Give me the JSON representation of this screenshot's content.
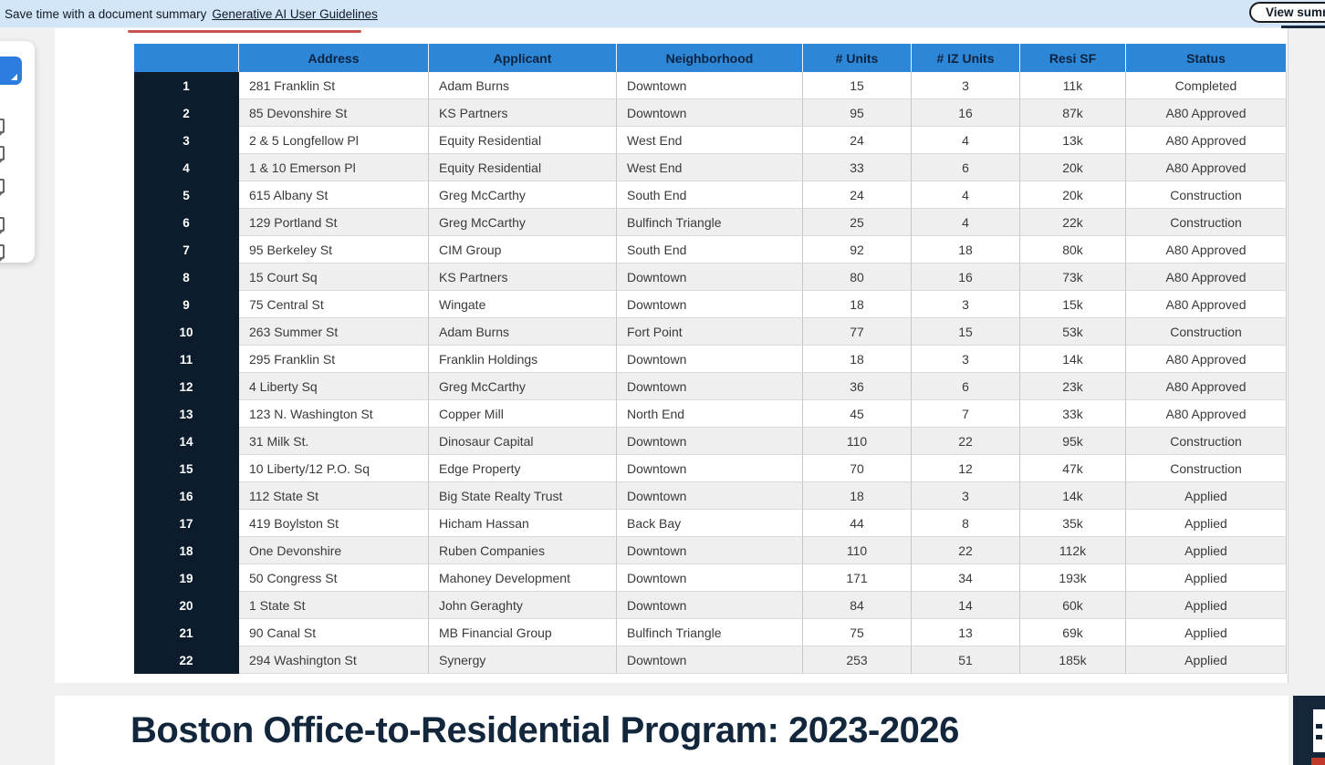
{
  "banner": {
    "message": "Save time with a document summary",
    "link_label": "Generative AI User Guidelines",
    "view_summary_button": "View summary"
  },
  "sidebar": {
    "active_tool": "ai-assistant",
    "tools": [
      "ai-assistant-icon",
      "bookmarks-icon",
      "attachments-icon",
      "layers-icon",
      "comments-icon",
      "signature-icon"
    ]
  },
  "table": {
    "headers": [
      "",
      "Address",
      "Applicant",
      "Neighborhood",
      "# Units",
      "# IZ Units",
      "Resi SF",
      "Status"
    ],
    "rows": [
      {
        "num": "1",
        "address": "281 Franklin St",
        "applicant": "Adam Burns",
        "neighborhood": "Downtown",
        "units": "15",
        "iz_units": "3",
        "resi_sf": "11k",
        "status": "Completed"
      },
      {
        "num": "2",
        "address": "85 Devonshire St",
        "applicant": "KS Partners",
        "neighborhood": "Downtown",
        "units": "95",
        "iz_units": "16",
        "resi_sf": "87k",
        "status": "A80 Approved"
      },
      {
        "num": "3",
        "address": "2 & 5 Longfellow Pl",
        "applicant": "Equity Residential",
        "neighborhood": "West End",
        "units": "24",
        "iz_units": "4",
        "resi_sf": "13k",
        "status": "A80 Approved"
      },
      {
        "num": "4",
        "address": "1 & 10 Emerson Pl",
        "applicant": "Equity Residential",
        "neighborhood": "West End",
        "units": "33",
        "iz_units": "6",
        "resi_sf": "20k",
        "status": "A80 Approved"
      },
      {
        "num": "5",
        "address": "615 Albany St",
        "applicant": "Greg McCarthy",
        "neighborhood": "South End",
        "units": "24",
        "iz_units": "4",
        "resi_sf": "20k",
        "status": "Construction"
      },
      {
        "num": "6",
        "address": "129 Portland St",
        "applicant": "Greg McCarthy",
        "neighborhood": "Bulfinch Triangle",
        "units": "25",
        "iz_units": "4",
        "resi_sf": "22k",
        "status": "Construction"
      },
      {
        "num": "7",
        "address": "95 Berkeley St",
        "applicant": "CIM Group",
        "neighborhood": "South End",
        "units": "92",
        "iz_units": "18",
        "resi_sf": "80k",
        "status": "A80 Approved"
      },
      {
        "num": "8",
        "address": "15 Court Sq",
        "applicant": "KS Partners",
        "neighborhood": "Downtown",
        "units": "80",
        "iz_units": "16",
        "resi_sf": "73k",
        "status": "A80 Approved"
      },
      {
        "num": "9",
        "address": "75 Central St",
        "applicant": "Wingate",
        "neighborhood": "Downtown",
        "units": "18",
        "iz_units": "3",
        "resi_sf": "15k",
        "status": "A80 Approved"
      },
      {
        "num": "10",
        "address": "263 Summer St",
        "applicant": "Adam Burns",
        "neighborhood": "Fort Point",
        "units": "77",
        "iz_units": "15",
        "resi_sf": "53k",
        "status": "Construction"
      },
      {
        "num": "11",
        "address": "295 Franklin St",
        "applicant": "Franklin Holdings",
        "neighborhood": "Downtown",
        "units": "18",
        "iz_units": "3",
        "resi_sf": "14k",
        "status": "A80 Approved"
      },
      {
        "num": "12",
        "address": "4 Liberty Sq",
        "applicant": "Greg McCarthy",
        "neighborhood": "Downtown",
        "units": "36",
        "iz_units": "6",
        "resi_sf": "23k",
        "status": "A80 Approved"
      },
      {
        "num": "13",
        "address": "123 N. Washington St",
        "applicant": "Copper Mill",
        "neighborhood": "North End",
        "units": "45",
        "iz_units": "7",
        "resi_sf": "33k",
        "status": "A80 Approved"
      },
      {
        "num": "14",
        "address": "31 Milk St.",
        "applicant": "Dinosaur Capital",
        "neighborhood": "Downtown",
        "units": "110",
        "iz_units": "22",
        "resi_sf": "95k",
        "status": "Construction"
      },
      {
        "num": "15",
        "address": "10 Liberty/12 P.O. Sq",
        "applicant": "Edge Property",
        "neighborhood": "Downtown",
        "units": "70",
        "iz_units": "12",
        "resi_sf": "47k",
        "status": "Construction"
      },
      {
        "num": "16",
        "address": "112 State St",
        "applicant": "Big State Realty Trust",
        "neighborhood": "Downtown",
        "units": "18",
        "iz_units": "3",
        "resi_sf": "14k",
        "status": "Applied"
      },
      {
        "num": "17",
        "address": "419 Boylston St",
        "applicant": "Hicham Hassan",
        "neighborhood": "Back Bay",
        "units": "44",
        "iz_units": "8",
        "resi_sf": "35k",
        "status": "Applied"
      },
      {
        "num": "18",
        "address": "One Devonshire",
        "applicant": "Ruben Companies",
        "neighborhood": "Downtown",
        "units": "110",
        "iz_units": "22",
        "resi_sf": "112k",
        "status": "Applied"
      },
      {
        "num": "19",
        "address": "50 Congress St",
        "applicant": "Mahoney Development",
        "neighborhood": "Downtown",
        "units": "171",
        "iz_units": "34",
        "resi_sf": "193k",
        "status": "Applied"
      },
      {
        "num": "20",
        "address": "1 State St",
        "applicant": "John Geraghty",
        "neighborhood": "Downtown",
        "units": "84",
        "iz_units": "14",
        "resi_sf": "60k",
        "status": "Applied"
      },
      {
        "num": "21",
        "address": "90 Canal St",
        "applicant": "MB Financial Group",
        "neighborhood": "Bulfinch Triangle",
        "units": "75",
        "iz_units": "13",
        "resi_sf": "69k",
        "status": "Applied"
      },
      {
        "num": "22",
        "address": "294 Washington St",
        "applicant": "Synergy",
        "neighborhood": "Downtown",
        "units": "253",
        "iz_units": "51",
        "resi_sf": "185k",
        "status": "Applied"
      }
    ]
  },
  "slide": {
    "title": "Boston Office-to-Residential Program: 2023-2026"
  },
  "colors": {
    "banner_blue": "#d3e6f8",
    "header_blue": "#2e86d7",
    "row_number_navy": "#0d1c2c",
    "stripe_gray": "#efefef",
    "red_line": "#c75252",
    "slide_navy": "#13273c",
    "corner_red": "#c0392b"
  }
}
